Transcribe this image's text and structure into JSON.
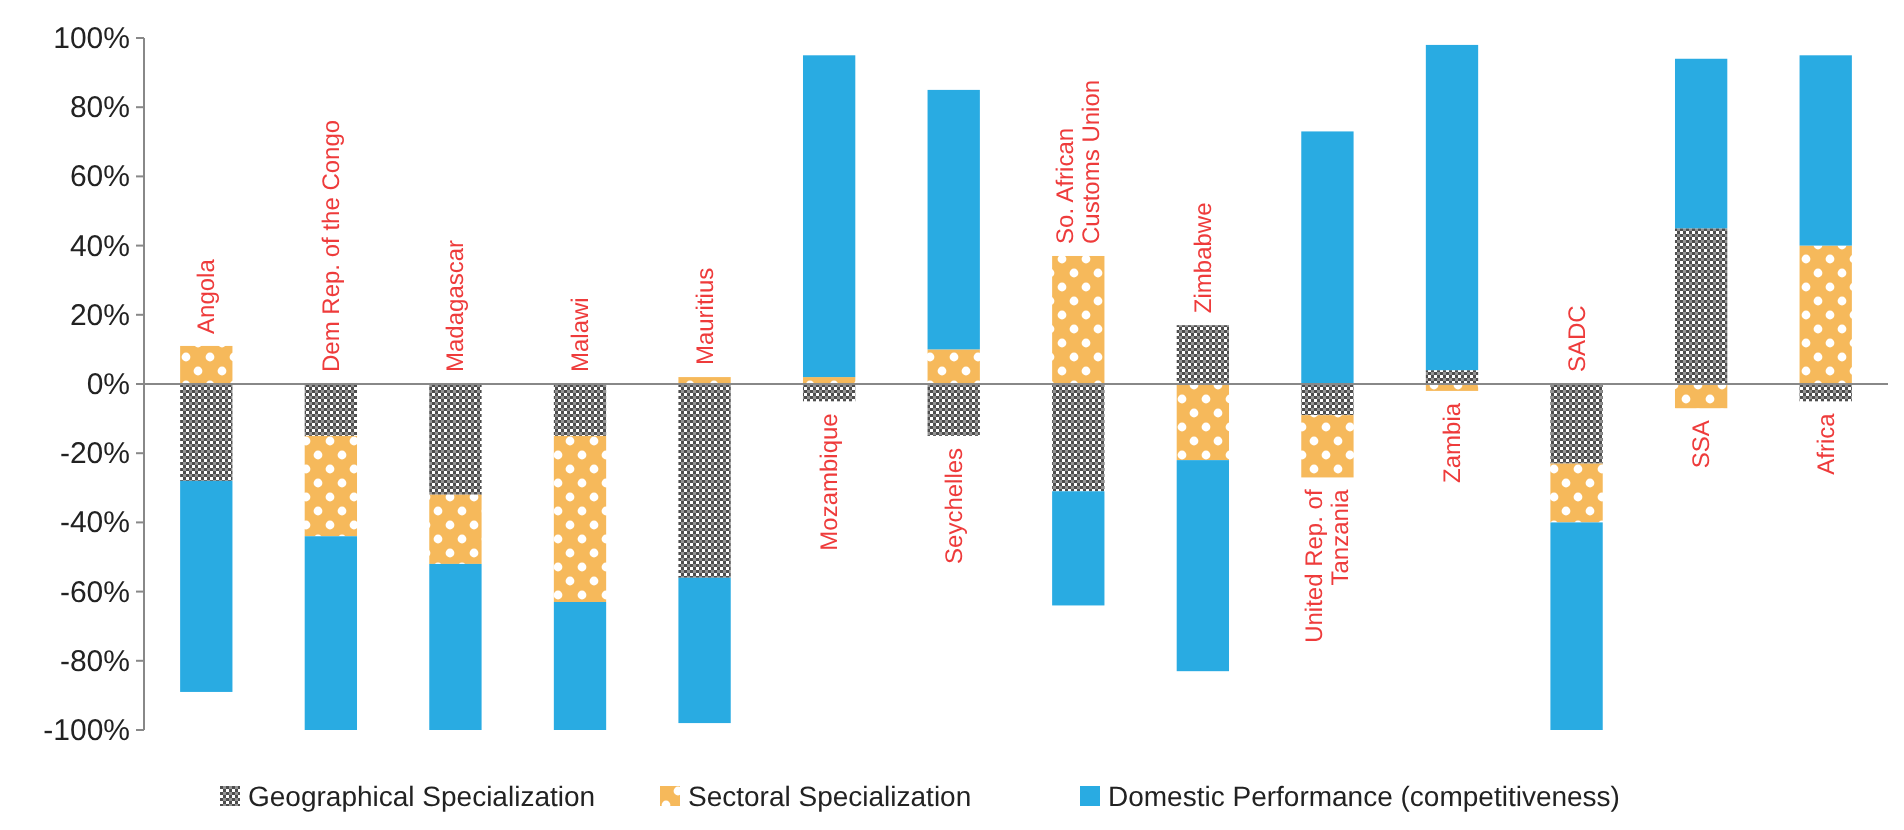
{
  "chart_data": {
    "type": "bar",
    "stacked": true,
    "categories": [
      "Angola",
      "Dem Rep. of the Congo",
      "Madagascar",
      "Malawi",
      "Mauritius",
      "Mozambique",
      "Seychelles",
      "So. African\nCustoms Union",
      "Zimbabwe",
      "United Rep. of\nTanzania",
      "Zambia",
      "SADC",
      "SSA",
      "Africa"
    ],
    "series": [
      {
        "name": "Geographical Specialization",
        "color": "#4d4d4d",
        "values": [
          -28,
          -15,
          -32,
          -15,
          -56,
          -5,
          -15,
          -31,
          17,
          -9,
          4,
          -23,
          45,
          -5
        ]
      },
      {
        "name": "Sectoral Specialization",
        "color": "#f6b95b",
        "values": [
          11,
          -29,
          -20,
          -48,
          2,
          2,
          10,
          37,
          -22,
          -18,
          -2,
          -17,
          -7,
          40
        ]
      },
      {
        "name": "Domestic Performance (competitiveness)",
        "color": "#29abe2",
        "values": [
          -61,
          -56,
          -48,
          -37,
          -42,
          93,
          75,
          -33,
          -61,
          73,
          94,
          -60,
          49,
          55
        ]
      }
    ],
    "ylim": [
      -100,
      100
    ],
    "yticks": [
      {
        "value": -100,
        "label": "-100%"
      },
      {
        "value": -80,
        "label": "-80%"
      },
      {
        "value": -60,
        "label": "-60%"
      },
      {
        "value": -40,
        "label": "-40%"
      },
      {
        "value": -20,
        "label": "-20%"
      },
      {
        "value": 0,
        "label": "0%"
      },
      {
        "value": 20,
        "label": "20%"
      },
      {
        "value": 40,
        "label": "40%"
      },
      {
        "value": 60,
        "label": "60%"
      },
      {
        "value": 80,
        "label": "80%"
      },
      {
        "value": 100,
        "label": "100%"
      }
    ],
    "legend": "bottom",
    "grid": false
  }
}
